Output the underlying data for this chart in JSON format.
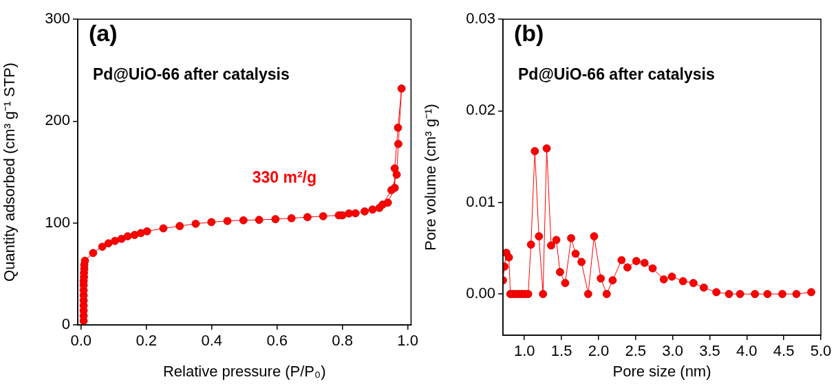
{
  "chart_data": [
    {
      "type": "line",
      "title": "(a)",
      "subtitle": "Pd@UiO-66 after catalysis",
      "xlabel": "Relative pressure (P/P₀)",
      "ylabel": "Quantity adsorbed (cm³ g⁻¹ STP)",
      "xlim": [
        -0.01,
        1.01
      ],
      "ylim": [
        0,
        300
      ],
      "xticks": [
        {
          "value": 0,
          "label": "0.0"
        },
        {
          "value": 0.2,
          "label": "0.2"
        },
        {
          "value": 0.4,
          "label": "0.4"
        },
        {
          "value": 0.6,
          "label": "0.6"
        },
        {
          "value": 0.8,
          "label": "0.8"
        },
        {
          "value": 1,
          "label": "1.0"
        }
      ],
      "yticks": [
        0,
        100,
        200,
        300
      ],
      "grid": false,
      "legend": false,
      "marker": "circle",
      "line_style": "solid",
      "annotations": [
        "330 m²/g"
      ],
      "series": [
        {
          "color": "#ff0000",
          "x": [
            0.008,
            0.008,
            0.008,
            0.008,
            0.008,
            0.008,
            0.008,
            0.008,
            0.008,
            0.009,
            0.009,
            0.01,
            0.01,
            0.012,
            0.037,
            0.065,
            0.084,
            0.104,
            0.124,
            0.143,
            0.164,
            0.183,
            0.202,
            0.252,
            0.302,
            0.351,
            0.399,
            0.448,
            0.497,
            0.545,
            0.595,
            0.644,
            0.693,
            0.741,
            0.789,
            0.8,
            0.82,
            0.84,
            0.868,
            0.892,
            0.913,
            0.923,
            0.95,
            0.966,
            0.971,
            0.981,
            0.97,
            0.96,
            0.96,
            0.939
          ],
          "values": [
            4,
            9,
            14,
            19,
            24,
            29,
            34,
            39,
            43,
            47,
            51,
            55,
            59,
            63,
            70.6,
            76.7,
            80.1,
            82.5,
            84.5,
            87,
            88.3,
            90.1,
            91.9,
            94.8,
            97,
            99.3,
            100.9,
            102,
            102.7,
            103.1,
            103.8,
            104.7,
            105.8,
            106.7,
            107.6,
            107.6,
            109.4,
            109.6,
            111.4,
            113.2,
            114.8,
            118.1,
            132.3,
            147.5,
            177.6,
            232,
            193.6,
            153.6,
            134.5,
            120
          ]
        }
      ]
    },
    {
      "type": "line",
      "title": "(b)",
      "subtitle": "Pd@UiO-66 after catalysis",
      "xlabel": "Pore size (nm)",
      "ylabel": "Pore volume (cm³ g⁻¹)",
      "xlim": [
        0.71,
        5.0
      ],
      "ylim": [
        -0.0045,
        0.03
      ],
      "xticks": [
        {
          "value": 1,
          "label": "1.0"
        },
        {
          "value": 1.5,
          "label": "1.5"
        },
        {
          "value": 2,
          "label": "2.0"
        },
        {
          "value": 2.5,
          "label": "2.5"
        },
        {
          "value": 3,
          "label": "3.0"
        },
        {
          "value": 3.5,
          "label": "3.5"
        },
        {
          "value": 4,
          "label": "4.0"
        },
        {
          "value": 4.5,
          "label": "4.5"
        },
        {
          "value": 5,
          "label": "5.0"
        }
      ],
      "yticks": [
        {
          "value": 0,
          "label": "0.00"
        },
        {
          "value": 0.01,
          "label": "0.01"
        },
        {
          "value": 0.02,
          "label": "0.02"
        },
        {
          "value": 0.03,
          "label": "0.03"
        }
      ],
      "grid": false,
      "legend": false,
      "marker": "circle",
      "line_style": "solid",
      "series": [
        {
          "color": "#ff0000",
          "x": [
            0.71,
            0.73,
            0.755,
            0.79,
            0.81,
            0.85,
            0.89,
            0.93,
            0.97,
            1.01,
            1.05,
            1.088,
            1.14,
            1.195,
            1.25,
            1.3,
            1.36,
            1.43,
            1.48,
            1.55,
            1.63,
            1.69,
            1.77,
            1.86,
            1.94,
            2.03,
            2.11,
            2.19,
            2.31,
            2.39,
            2.51,
            2.62,
            2.73,
            2.88,
            2.99,
            3.14,
            3.28,
            3.42,
            3.59,
            3.76,
            3.91,
            4.11,
            4.28,
            4.48,
            4.67,
            4.87
          ],
          "values": [
            0.0015,
            0.003,
            0.0045,
            0.004,
            0,
            0,
            0,
            0,
            0,
            0,
            0,
            0.0054,
            0.0156,
            0.0063,
            0,
            0.0159,
            0.0053,
            0.0059,
            0.0024,
            0.0012,
            0.0061,
            0.0044,
            0.0035,
            0,
            0.0063,
            0.0017,
            0,
            0.0015,
            0.0037,
            0.0029,
            0.0036,
            0.0034,
            0.0028,
            0.0016,
            0.0019,
            0.0014,
            0.0012,
            0.0007,
            0.0002,
            0,
            0,
            0,
            0,
            0,
            0,
            0.0002
          ]
        }
      ]
    }
  ]
}
